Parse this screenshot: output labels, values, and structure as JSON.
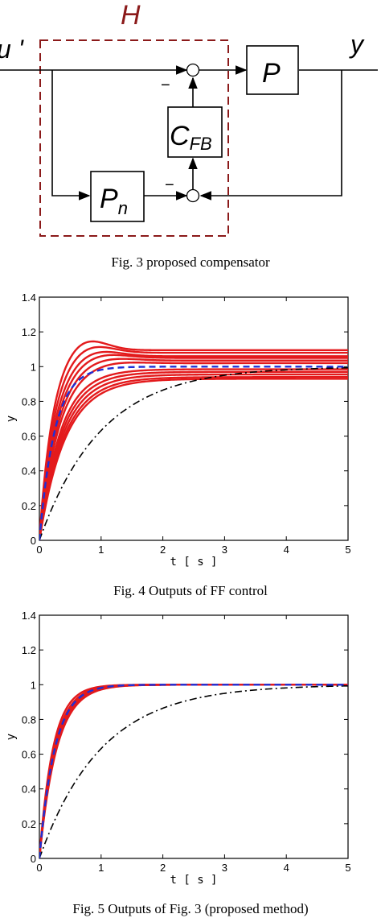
{
  "figure3": {
    "caption": "Fig.  3  proposed compensator",
    "labels": {
      "H": "H",
      "u_prime": "u '",
      "y": "y",
      "P": "P",
      "C": "C",
      "C_sub": "FB",
      "Pn": "P",
      "Pn_sub": "n",
      "minus1": "−",
      "minus2": "−"
    },
    "colors": {
      "dashed_box": "#8b1a1a"
    }
  },
  "chart_data": [
    {
      "type": "line",
      "caption": "Fig.  4  Outputs of FF control",
      "xlabel": "t[s]",
      "ylabel": "y",
      "xlim": [
        0,
        5
      ],
      "ylim": [
        0,
        1.4
      ],
      "xticks": [
        0,
        1,
        2,
        3,
        4,
        5
      ],
      "yticks": [
        0,
        0.2,
        0.4,
        0.6,
        0.8,
        1,
        1.2,
        1.4
      ],
      "ytick_labels": [
        "0",
        "0.2",
        "0.4",
        "0.6",
        "0.8",
        "1",
        "1.2",
        "1.4"
      ],
      "grid": false,
      "series": [
        {
          "style": "red-solid",
          "color": "#e31a1c",
          "gains": [
            1.095,
            1.08,
            1.06,
            1.05,
            1.035,
            1.02,
            0.985,
            0.97,
            0.955,
            0.94,
            0.93
          ],
          "overshoot": [
            0.08,
            0.06,
            0.05,
            0.04,
            0.03,
            0.02,
            0.0,
            0.0,
            0.0,
            0.0,
            0.0
          ],
          "tau": [
            0.22,
            0.24,
            0.26,
            0.28,
            0.3,
            0.32,
            0.34,
            0.36,
            0.38,
            0.4,
            0.42
          ]
        },
        {
          "style": "blue-dashed",
          "color": "#1f2fd6",
          "gain": 1.0,
          "tau": 0.25
        },
        {
          "style": "black-dashdot",
          "color": "#000000",
          "gain": 1.0,
          "tau": 1.0
        }
      ]
    },
    {
      "type": "line",
      "caption": "Fig.  5  Outputs of Fig. 3 (proposed method)",
      "xlabel": "t[s]",
      "ylabel": "y",
      "xlim": [
        0,
        5
      ],
      "ylim": [
        0,
        1.4
      ],
      "xticks": [
        0,
        1,
        2,
        3,
        4,
        5
      ],
      "yticks": [
        0,
        0.2,
        0.4,
        0.6,
        0.8,
        1,
        1.2,
        1.4
      ],
      "ytick_labels": [
        "0",
        "0.2",
        "0.4",
        "0.6",
        "0.8",
        "1",
        "1.2",
        "1.4"
      ],
      "grid": false,
      "series": [
        {
          "style": "red-solid",
          "color": "#e31a1c",
          "gains": [
            1.0,
            1.0,
            1.0,
            1.0,
            1.0,
            1.0
          ],
          "overshoot": [
            0,
            0,
            0,
            0,
            0,
            0
          ],
          "tau": [
            0.22,
            0.24,
            0.25,
            0.26,
            0.27,
            0.28
          ]
        },
        {
          "style": "blue-dashed",
          "color": "#1f2fd6",
          "gain": 1.0,
          "tau": 0.25
        },
        {
          "style": "black-dashdot",
          "color": "#000000",
          "gain": 1.0,
          "tau": 1.0
        }
      ]
    }
  ]
}
